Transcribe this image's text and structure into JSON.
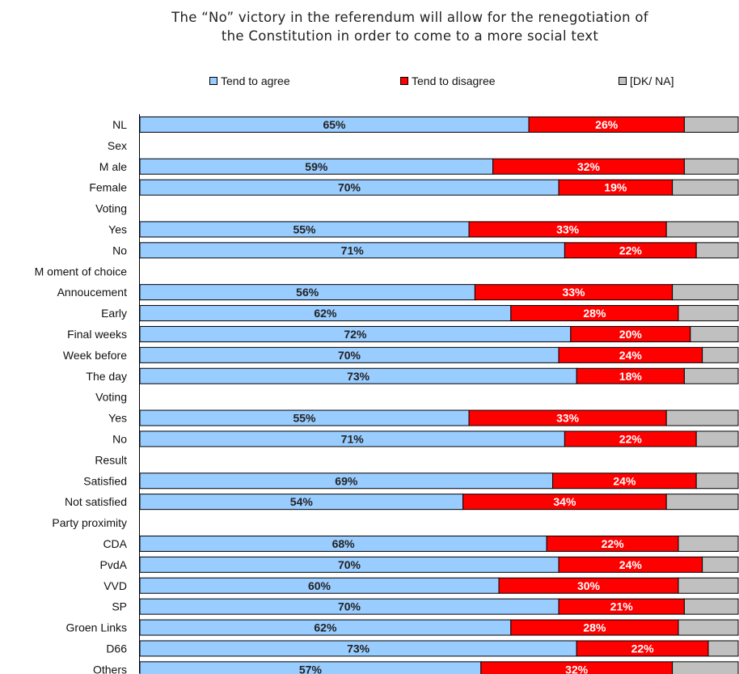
{
  "chart_data": {
    "type": "bar",
    "orientation": "horizontal",
    "stacked": true,
    "title": "The “No” victory in the referendum will allow for the renegotiation of the Constitution in order to come to a more social text",
    "title_lines": [
      "The “No” victory in the referendum will allow for the renegotiation of",
      "the Constitution in order to come to a more social text"
    ],
    "legend_position": "top",
    "xlim": [
      0,
      100
    ],
    "grid": false,
    "colors": {
      "agree": "#99CCFF",
      "disagree": "#FF0000",
      "dkna": "#C0C0C0"
    },
    "series": [
      {
        "key": "agree",
        "name": "Tend to agree"
      },
      {
        "key": "disagree",
        "name": "Tend to disagree"
      },
      {
        "key": "dkna",
        "name": "[DK/ NA]"
      }
    ],
    "rows": [
      {
        "label": "NL",
        "agree": 65,
        "disagree": 26,
        "agree_label": "65%",
        "disagree_label": "26%"
      },
      {
        "label": "Sex",
        "header": true
      },
      {
        "label": "M ale",
        "agree": 59,
        "disagree": 32,
        "agree_label": "59%",
        "disagree_label": "32%"
      },
      {
        "label": "Female",
        "agree": 70,
        "disagree": 19,
        "agree_label": "70%",
        "disagree_label": "19%"
      },
      {
        "label": "Voting",
        "header": true
      },
      {
        "label": "Yes",
        "agree": 55,
        "disagree": 33,
        "agree_label": "55%",
        "disagree_label": "33%"
      },
      {
        "label": "No",
        "agree": 71,
        "disagree": 22,
        "agree_label": "71%",
        "disagree_label": "22%"
      },
      {
        "label": "M oment of choice",
        "header": true
      },
      {
        "label": "Annoucement",
        "agree": 56,
        "disagree": 33,
        "agree_label": "56%",
        "disagree_label": "33%"
      },
      {
        "label": "Early",
        "agree": 62,
        "disagree": 28,
        "agree_label": "62%",
        "disagree_label": "28%"
      },
      {
        "label": "Final weeks",
        "agree": 72,
        "disagree": 20,
        "agree_label": "72%",
        "disagree_label": "20%"
      },
      {
        "label": "Week before",
        "agree": 70,
        "disagree": 24,
        "agree_label": "70%",
        "disagree_label": "24%"
      },
      {
        "label": "The day",
        "agree": 73,
        "disagree": 18,
        "agree_label": "73%",
        "disagree_label": "18%"
      },
      {
        "label": "Voting",
        "header": true
      },
      {
        "label": "Yes",
        "agree": 55,
        "disagree": 33,
        "agree_label": "55%",
        "disagree_label": "33%"
      },
      {
        "label": "No",
        "agree": 71,
        "disagree": 22,
        "agree_label": "71%",
        "disagree_label": "22%"
      },
      {
        "label": "Result",
        "header": true
      },
      {
        "label": "Satisfied",
        "agree": 69,
        "disagree": 24,
        "agree_label": "69%",
        "disagree_label": "24%"
      },
      {
        "label": "Not satisfied",
        "agree": 54,
        "disagree": 34,
        "agree_label": "54%",
        "disagree_label": "34%"
      },
      {
        "label": "Party proximity",
        "header": true
      },
      {
        "label": "CDA",
        "agree": 68,
        "disagree": 22,
        "agree_label": "68%",
        "disagree_label": "22%"
      },
      {
        "label": "PvdA",
        "agree": 70,
        "disagree": 24,
        "agree_label": "70%",
        "disagree_label": "24%"
      },
      {
        "label": "VVD",
        "agree": 60,
        "disagree": 30,
        "agree_label": "60%",
        "disagree_label": "30%"
      },
      {
        "label": "SP",
        "agree": 70,
        "disagree": 21,
        "agree_label": "70%",
        "disagree_label": "21%"
      },
      {
        "label": "Groen Links",
        "agree": 62,
        "disagree": 28,
        "agree_label": "62%",
        "disagree_label": "28%"
      },
      {
        "label": "D66",
        "agree": 73,
        "disagree": 22,
        "agree_label": "73%",
        "disagree_label": "22%"
      },
      {
        "label": "Others",
        "agree": 57,
        "disagree": 32,
        "agree_label": "57%",
        "disagree_label": "32%"
      }
    ]
  }
}
